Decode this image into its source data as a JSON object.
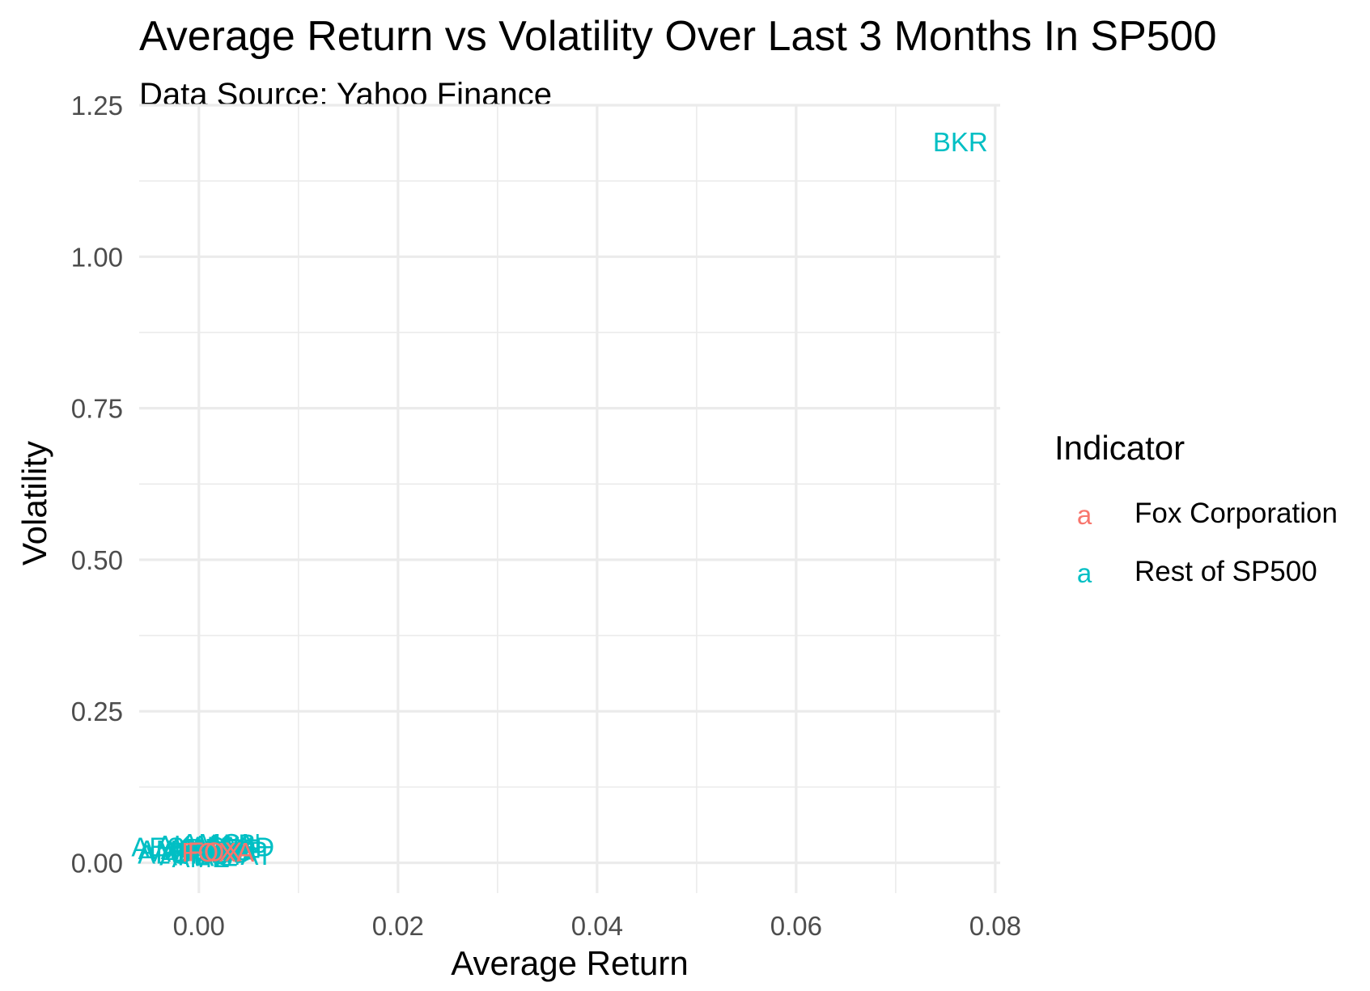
{
  "chart_data": {
    "type": "scatter",
    "title": "Average Return vs Volatility Over Last 3 Months In SP500",
    "subtitle": "Data Source: Yahoo Finance",
    "xlabel": "Average Return",
    "ylabel": "Volatility",
    "xlim": [
      -0.006,
      0.0805
    ],
    "ylim": [
      -0.05,
      1.25
    ],
    "x_ticks": [
      0.0,
      0.02,
      0.04,
      0.06,
      0.08
    ],
    "x_tick_labels": [
      "0.00",
      "0.02",
      "0.04",
      "0.06",
      "0.08"
    ],
    "y_ticks": [
      0.0,
      0.25,
      0.5,
      0.75,
      1.0,
      1.25
    ],
    "y_tick_labels": [
      "0.00",
      "0.25",
      "0.50",
      "0.75",
      "1.00",
      "1.25"
    ],
    "grid": true,
    "legend": {
      "title": "Indicator",
      "position": "right",
      "key_glyph": "a",
      "entries": [
        {
          "label": "Fox Corporation",
          "color": "#F8766D"
        },
        {
          "label": "Rest of SP500",
          "color": "#00BFC4"
        }
      ]
    },
    "series": [
      {
        "name": "Rest of SP500",
        "color": "#00BFC4",
        "points": [
          {
            "label": "BKR",
            "x": 0.0765,
            "y": 1.19
          },
          {
            "label": "AES",
            "x": -0.0041,
            "y": 0.027
          },
          {
            "label": "ABT",
            "x": -0.002,
            "y": 0.018
          },
          {
            "label": "ACN",
            "x": -0.001,
            "y": 0.022
          },
          {
            "label": "ADBE",
            "x": 0.0005,
            "y": 0.025
          },
          {
            "label": "ADI",
            "x": 0.0012,
            "y": 0.019
          },
          {
            "label": "ADM",
            "x": 0.002,
            "y": 0.028
          },
          {
            "label": "ADP",
            "x": 0.0028,
            "y": 0.021
          },
          {
            "label": "AEE",
            "x": 0.0035,
            "y": 0.024
          },
          {
            "label": "AEP",
            "x": 0.0042,
            "y": 0.02
          },
          {
            "label": "AFL",
            "x": -0.0015,
            "y": 0.012
          },
          {
            "label": "AIG",
            "x": 0.0008,
            "y": 0.014
          },
          {
            "label": "AIZ",
            "x": 0.0018,
            "y": 0.011
          },
          {
            "label": "AJG",
            "x": 0.0025,
            "y": 0.016
          },
          {
            "label": "AKAM",
            "x": -0.0005,
            "y": 0.03
          },
          {
            "label": "ALB",
            "x": 0.0032,
            "y": 0.032
          },
          {
            "label": "ALGN",
            "x": -0.0025,
            "y": 0.015
          },
          {
            "label": "ALL",
            "x": 0.0014,
            "y": 0.026
          },
          {
            "label": "AMAT",
            "x": 0.0038,
            "y": 0.013
          },
          {
            "label": "AMD",
            "x": 0.0046,
            "y": 0.027
          },
          {
            "label": "AME",
            "x": 0.0002,
            "y": 0.009
          },
          {
            "label": "AMGN",
            "x": 0.0022,
            "y": 0.033
          },
          {
            "label": "AMP",
            "x": -0.0032,
            "y": 0.022
          },
          {
            "label": "AMT",
            "x": 0.0011,
            "y": 0.017
          }
        ]
      },
      {
        "name": "Fox Corporation",
        "color": "#F8766D",
        "points": [
          {
            "label": "FOX",
            "x": 0.0016,
            "y": 0.019
          },
          {
            "label": "FOXA",
            "x": 0.0019,
            "y": 0.018
          }
        ]
      }
    ]
  }
}
